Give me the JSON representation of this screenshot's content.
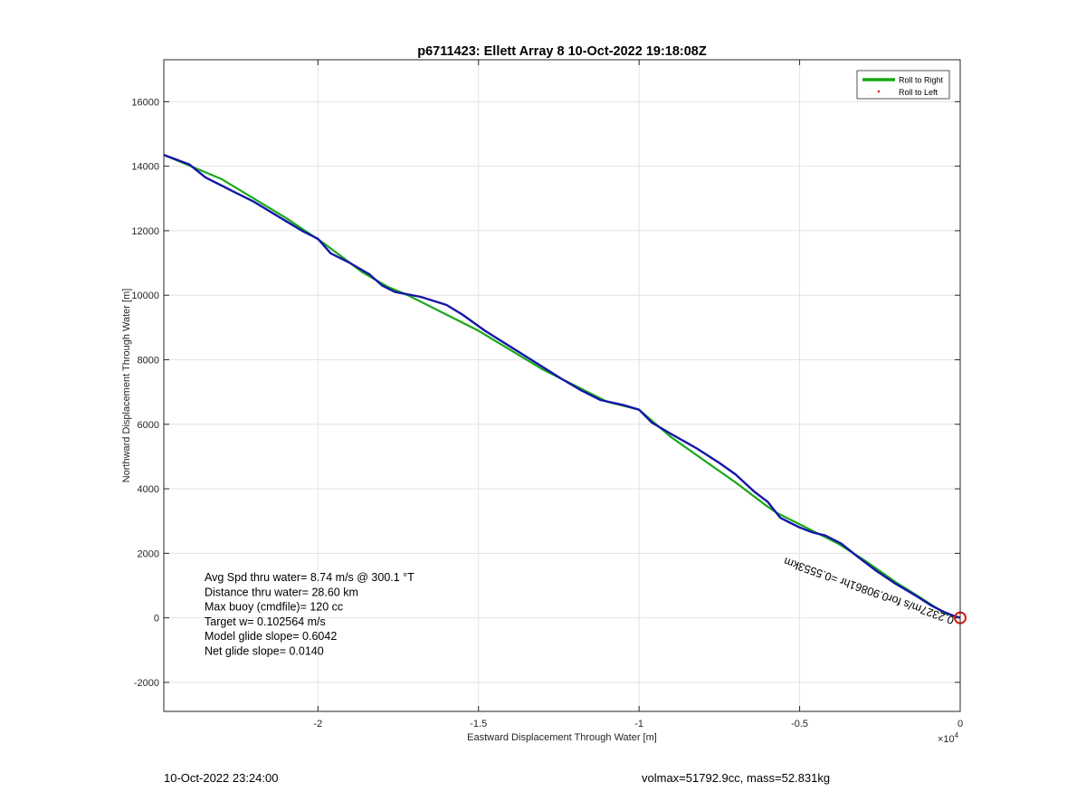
{
  "chart_data": {
    "type": "line",
    "title": "p6711423: Ellett Array 8 10-Oct-2022 19:18:08Z",
    "xlabel": "Eastward Displacement Through Water [m]",
    "ylabel": "Northward Displacement Through Water [m]",
    "xlim": [
      -24800,
      0
    ],
    "ylim": [
      -2900,
      17300
    ],
    "x_exponent_label": "×10",
    "x_exponent_power": "4",
    "x_ticks": [
      -20000,
      -15000,
      -10000,
      -5000,
      0
    ],
    "x_tick_labels": [
      "-2",
      "-1.5",
      "-1",
      "-0.5",
      "0"
    ],
    "y_ticks": [
      -2000,
      0,
      2000,
      4000,
      6000,
      8000,
      10000,
      12000,
      14000,
      16000
    ],
    "y_tick_labels": [
      "-2000",
      "0",
      "2000",
      "4000",
      "6000",
      "8000",
      "10000",
      "12000",
      "14000",
      "16000"
    ],
    "grid": true,
    "legend_position": "top-right",
    "series": [
      {
        "name": "Roll to Right",
        "color": "#17a817",
        "style": "line",
        "x": [
          -24800,
          -23000,
          -21000,
          -19800,
          -18600,
          -17800,
          -17200,
          -15000,
          -13000,
          -11000,
          -10000,
          -9000,
          -8000,
          -7000,
          -6000,
          -5700,
          -4500,
          -3800,
          -3000,
          -2000,
          -1200,
          -500,
          0
        ],
        "y": [
          14350,
          13600,
          12400,
          11600,
          10700,
          10250,
          10000,
          8900,
          7700,
          6700,
          6450,
          5600,
          4900,
          4200,
          3450,
          3250,
          2650,
          2300,
          1800,
          1100,
          600,
          150,
          0
        ]
      },
      {
        "name": "Roll to Left",
        "color": "#e01818",
        "style": "marker",
        "x": [],
        "y": []
      },
      {
        "name": "",
        "color": "#1515a8",
        "style": "line",
        "x": [
          -24800,
          -24000,
          -23500,
          -22700,
          -22000,
          -21500,
          -21000,
          -20500,
          -20000,
          -19600,
          -19000,
          -18400,
          -18000,
          -17600,
          -16800,
          -16000,
          -15500,
          -14800,
          -14000,
          -13200,
          -12400,
          -11800,
          -11200,
          -10500,
          -10000,
          -9600,
          -9000,
          -8200,
          -7500,
          -7000,
          -6400,
          -6000,
          -5800,
          -5600,
          -5300,
          -5000,
          -4600,
          -4200,
          -3700,
          -3200,
          -2600,
          -2000,
          -1400,
          -900,
          -500,
          -200,
          0
        ],
        "y": [
          14350,
          14050,
          13650,
          13250,
          12900,
          12600,
          12300,
          12000,
          11750,
          11300,
          11000,
          10650,
          10300,
          10100,
          9950,
          9700,
          9400,
          8900,
          8400,
          7900,
          7400,
          7050,
          6750,
          6600,
          6450,
          6050,
          5700,
          5250,
          4800,
          4450,
          3900,
          3600,
          3350,
          3100,
          2950,
          2800,
          2650,
          2550,
          2300,
          1900,
          1450,
          1050,
          700,
          380,
          180,
          60,
          0
        ]
      }
    ],
    "markers": [
      {
        "name": "end-point",
        "x": 0,
        "y": 0,
        "color": "#e01818",
        "shape": "circle"
      }
    ],
    "rotated_annotation": "0.2327m/s for0.90861hr =0.5553km",
    "annotations": [
      "Avg Spd thru water=  8.74 m/s @ 300.1 °T",
      "Distance thru water= 28.60 km",
      "Max buoy (cmdfile)= 120 cc",
      "Target w= 0.102564 m/s",
      "Model glide slope= 0.6042",
      "Net glide slope= 0.0140"
    ]
  },
  "footer": {
    "left": "10-Oct-2022 23:24:00",
    "right": "volmax=51792.9cc, mass=52.831kg"
  }
}
